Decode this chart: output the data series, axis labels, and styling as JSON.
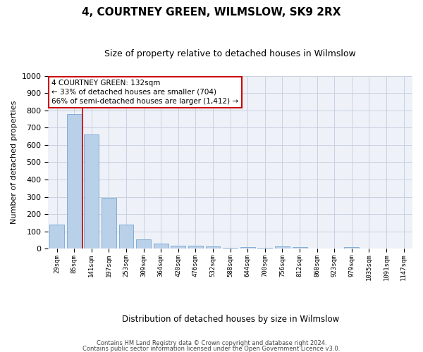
{
  "title": "4, COURTNEY GREEN, WILMSLOW, SK9 2RX",
  "subtitle": "Size of property relative to detached houses in Wilmslow",
  "xlabel": "Distribution of detached houses by size in Wilmslow",
  "ylabel": "Number of detached properties",
  "bar_color": "#b8d0e8",
  "bar_edge_color": "#6699cc",
  "categories": [
    "29sqm",
    "85sqm",
    "141sqm",
    "197sqm",
    "253sqm",
    "309sqm",
    "364sqm",
    "420sqm",
    "476sqm",
    "532sqm",
    "588sqm",
    "644sqm",
    "700sqm",
    "756sqm",
    "812sqm",
    "868sqm",
    "923sqm",
    "979sqm",
    "1035sqm",
    "1091sqm",
    "1147sqm"
  ],
  "values": [
    140,
    778,
    660,
    295,
    138,
    55,
    28,
    18,
    18,
    12,
    5,
    10,
    5,
    12,
    8,
    0,
    0,
    10,
    0,
    0,
    0
  ],
  "ylim": [
    0,
    1000
  ],
  "yticks": [
    0,
    100,
    200,
    300,
    400,
    500,
    600,
    700,
    800,
    900,
    1000
  ],
  "red_line_x": 1.5,
  "annotation_line1": "4 COURTNEY GREEN: 132sqm",
  "annotation_line2": "← 33% of detached houses are smaller (704)",
  "annotation_line3": "66% of semi-detached houses are larger (1,412) →",
  "annotation_box_color": "#ffffff",
  "annotation_box_edge": "#cc0000",
  "footer_line1": "Contains HM Land Registry data © Crown copyright and database right 2024.",
  "footer_line2": "Contains public sector information licensed under the Open Government Licence v3.0.",
  "grid_color": "#c8d0e0",
  "background_color": "#eef2f8",
  "title_fontsize": 11,
  "subtitle_fontsize": 9
}
